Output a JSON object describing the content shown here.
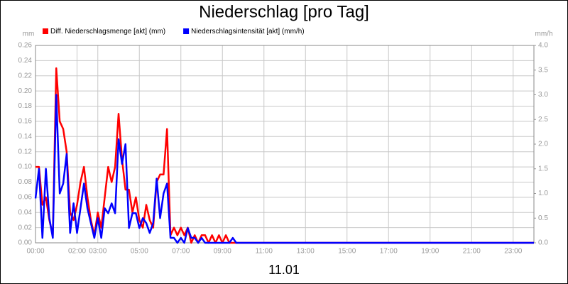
{
  "chart_data": {
    "type": "line",
    "title": "Niederschlag [pro Tag]",
    "xlabel": "11.01",
    "ylabel": "mm",
    "y2label": "mm/h",
    "legend": "top",
    "grid": true,
    "x": [
      0,
      0.1667,
      0.3333,
      0.5,
      0.6667,
      0.8333,
      1,
      1.1667,
      1.3333,
      1.5,
      1.6667,
      1.8333,
      2,
      2.1667,
      2.3333,
      2.5,
      2.6667,
      2.8333,
      3,
      3.1667,
      3.3333,
      3.5,
      3.6667,
      3.8333,
      4,
      4.1667,
      4.3333,
      4.5,
      4.6667,
      4.8333,
      5,
      5.1667,
      5.3333,
      5.5,
      5.6667,
      5.8333,
      6,
      6.1667,
      6.3333,
      6.5,
      6.6667,
      6.8333,
      7,
      7.1667,
      7.3333,
      7.5,
      7.6667,
      7.8333,
      8,
      8.1667,
      8.3333,
      8.5,
      8.6667,
      8.8333,
      9,
      9.1667,
      9.3333,
      9.5,
      9.6667,
      9.8333,
      10,
      24
    ],
    "xlim": [
      0,
      24
    ],
    "xticks": [
      {
        "value": 0,
        "label": "00:00"
      },
      {
        "value": 2,
        "label": "02:00"
      },
      {
        "value": 3,
        "label": "03:00"
      },
      {
        "value": 5,
        "label": "05:00"
      },
      {
        "value": 7,
        "label": "07:00"
      },
      {
        "value": 9,
        "label": "09:00"
      },
      {
        "value": 11,
        "label": "11:00"
      },
      {
        "value": 13,
        "label": "13:00"
      },
      {
        "value": 15,
        "label": "15:00"
      },
      {
        "value": 17,
        "label": "17:00"
      },
      {
        "value": 19,
        "label": "19:00"
      },
      {
        "value": 21,
        "label": "21:00"
      },
      {
        "value": 23,
        "label": "23:00"
      }
    ],
    "ylim": [
      0,
      0.26
    ],
    "yticks": [
      {
        "value": 0,
        "label": "0.00"
      },
      0.02,
      0.04,
      0.06,
      0.08,
      {
        "value": 0.1,
        "label": "0.10"
      },
      0.12,
      0.14,
      0.16,
      0.18,
      {
        "value": 0.2,
        "label": "0.20"
      },
      0.22,
      0.24,
      0.26
    ],
    "y2lim": [
      0,
      4
    ],
    "y2ticks": [
      {
        "value": 0,
        "label": "0.0"
      },
      0.5,
      {
        "value": 1,
        "label": "1.0"
      },
      1.5,
      {
        "value": 2,
        "label": "2.0"
      },
      2.5,
      {
        "value": 3,
        "label": "3.0"
      },
      3.5,
      {
        "value": 4,
        "label": "4.0"
      }
    ],
    "series": [
      {
        "name": "Diff. Niederschlagsmenge [akt] (mm)",
        "color": "#ff0000",
        "values": [
          0.1,
          0.1,
          0.05,
          0.06,
          0.03,
          0.01,
          0.23,
          0.16,
          0.15,
          0.12,
          0.04,
          0.03,
          0.05,
          0.08,
          0.1,
          0.06,
          0.03,
          0.01,
          0.04,
          0.02,
          0.06,
          0.1,
          0.08,
          0.1,
          0.17,
          0.11,
          0.07,
          0.07,
          0.04,
          0.06,
          0.03,
          0.02,
          0.05,
          0.03,
          0.02,
          0.08,
          0.09,
          0.09,
          0.15,
          0.01,
          0.02,
          0.01,
          0.02,
          0.01,
          0.02,
          0,
          0.01,
          0,
          0.01,
          0.01,
          0,
          0.01,
          0,
          0.01,
          0,
          0.01,
          0,
          0,
          0,
          0,
          0,
          0
        ]
      },
      {
        "name": "Niederschlagsintensität [akt] (mm/h)",
        "color": "#0000ff",
        "axis": "y2",
        "values": [
          0.9,
          1.5,
          0.1,
          1.5,
          0.5,
          0.1,
          3.0,
          1.0,
          1.2,
          1.8,
          0.2,
          0.8,
          0.2,
          0.7,
          1.2,
          0.7,
          0.4,
          0.1,
          0.5,
          0.1,
          0.7,
          0.6,
          0.8,
          0.6,
          2.1,
          1.6,
          2.0,
          0.3,
          0.6,
          0.6,
          0.3,
          0.5,
          0.4,
          0.2,
          0.4,
          1.3,
          0.5,
          1.0,
          1.2,
          0.1,
          0.1,
          0,
          0.1,
          0,
          0.3,
          0.1,
          0.1,
          0,
          0.1,
          0,
          0,
          0,
          0,
          0,
          0,
          0,
          0,
          0.1,
          0,
          0,
          0,
          0
        ]
      }
    ]
  }
}
